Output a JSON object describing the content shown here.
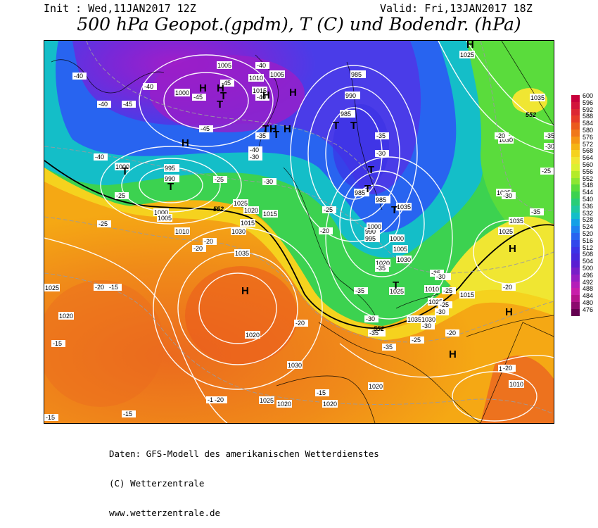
{
  "header": {
    "init": "Init : Wed,11JAN2017 12Z",
    "valid": "Valid: Fri,13JAN2017 18Z",
    "title": "500 hPa Geopot.(gpdm), T (C) und Bodendr. (hPa)"
  },
  "footer": {
    "line1": "Daten: GFS-Modell des amerikanischen Wetterdienstes",
    "line2": "(C) Wetterzentrale",
    "line3": "www.wetterzentrale.de"
  },
  "colorbar": {
    "labels": [
      "600",
      "596",
      "592",
      "588",
      "584",
      "580",
      "576",
      "572",
      "568",
      "564",
      "560",
      "556",
      "552",
      "548",
      "544",
      "540",
      "536",
      "532",
      "528",
      "524",
      "520",
      "516",
      "512",
      "508",
      "504",
      "500",
      "496",
      "492",
      "488",
      "484",
      "480",
      "476"
    ],
    "colors": [
      "#c8003c",
      "#d2143c",
      "#dc2832",
      "#e63c28",
      "#eb5a1e",
      "#f07819",
      "#f59614",
      "#f5b414",
      "#f5d21e",
      "#f0e632",
      "#dcf032",
      "#b4eb28",
      "#8ce632",
      "#5adc3c",
      "#3cd250",
      "#28cd78",
      "#1ec8a0",
      "#14bec8",
      "#14a0e6",
      "#1e82f0",
      "#2864f0",
      "#3246eb",
      "#3c32e6",
      "#4628dc",
      "#5a1ed2",
      "#781ec8",
      "#961ec3",
      "#b41eb9",
      "#c81eaa",
      "#b4148c",
      "#8c0a6e",
      "#640050"
    ]
  },
  "map": {
    "isobars": [
      "1025",
      "1035",
      "1005",
      "1010",
      "1005",
      "1000",
      "1015",
      "985",
      "990",
      "985",
      "1025",
      "1035",
      "1030",
      "1025",
      "1000",
      "995",
      "1010",
      "1015",
      "990",
      "1000",
      "1005",
      "1010",
      "1030",
      "1020",
      "1025",
      "1015",
      "1035",
      "985",
      "985",
      "990",
      "995",
      "1000",
      "1005",
      "1020",
      "1025",
      "1010",
      "1015",
      "1035",
      "1030",
      "1025",
      "1020",
      "1020",
      "1025",
      "1010",
      "1015",
      "1020",
      "1030",
      "1025",
      "1020",
      "1000",
      "1035",
      "1030",
      "1020"
    ],
    "temp_labels": [
      "-40",
      "-40",
      "-45",
      "-40",
      "-45",
      "-45",
      "-40",
      "-40",
      "-45",
      "-40",
      "-40",
      "-35",
      "-30",
      "-25",
      "-30",
      "-35",
      "-30",
      "-25",
      "-25",
      "-20",
      "-20",
      "-15",
      "-15",
      "-20",
      "-15",
      "-15",
      "-20",
      "-20",
      "-25",
      "-30",
      "-35",
      "-30",
      "-35",
      "-35",
      "-30",
      "-25",
      "-20",
      "-25",
      "-20",
      "-20",
      "-15",
      "-20",
      "-30",
      "-35",
      "-30",
      "-35",
      "-30",
      "-25",
      "-30",
      "-35",
      "-35",
      "-25",
      "-20",
      "-30",
      "-15"
    ],
    "contour_552": [
      "552",
      "552",
      "552"
    ],
    "pressure_centers": [
      "H",
      "H",
      "H",
      "H",
      "H",
      "H",
      "H",
      "H",
      "H",
      "H",
      "T",
      "T",
      "T",
      "T",
      "T",
      "T",
      "T",
      "T",
      "T",
      "T",
      "T",
      "T",
      "H",
      "H"
    ]
  }
}
